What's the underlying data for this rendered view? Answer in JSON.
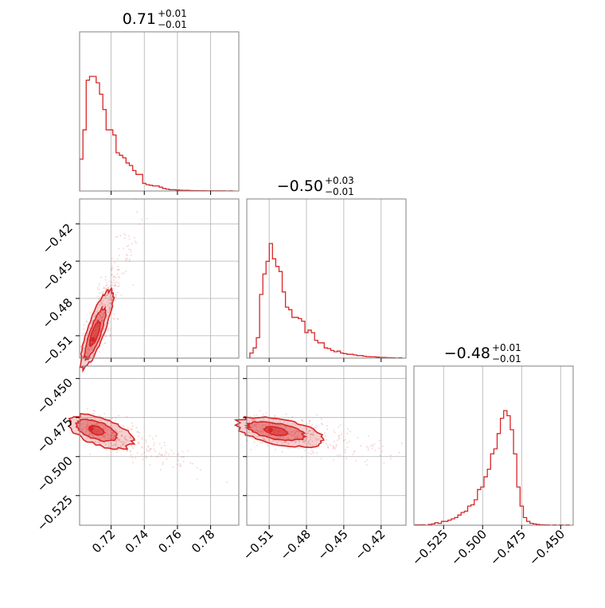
{
  "colors": {
    "accent": "#d62728",
    "fill": "#f4c6c7",
    "grid": "#b0b0b0",
    "frame": "#808080"
  },
  "chart_data": {
    "type": "corner",
    "titles": [
      {
        "center": "0.71",
        "plus": "+0.01",
        "minus": "−0.01"
      },
      {
        "center": "−0.50",
        "plus": "+0.03",
        "minus": "−0.01"
      },
      {
        "center": "−0.48",
        "plus": "+0.01",
        "minus": "−0.01"
      }
    ],
    "params": [
      {
        "range": [
          0.701,
          0.797
        ],
        "ticks": [
          0.72,
          0.74,
          0.76,
          0.78
        ],
        "tick_labels": [
          "0.72",
          "0.74",
          "0.76",
          "0.78"
        ]
      },
      {
        "range": [
          -0.528,
          -0.4
        ],
        "ticks": [
          -0.51,
          -0.48,
          -0.45,
          -0.42
        ],
        "tick_labels": [
          "−0.51",
          "−0.48",
          "−0.45",
          "−0.42"
        ]
      },
      {
        "range": [
          -0.544,
          -0.442
        ],
        "ticks": [
          -0.525,
          -0.5,
          -0.475,
          -0.45
        ],
        "tick_labels": [
          "−0.525",
          "−0.500",
          "−0.475",
          "−0.450"
        ]
      }
    ],
    "histograms": [
      {
        "bin_width": 0.002,
        "bins": [
          [
            0.701,
            0.25
          ],
          [
            0.703,
            0.48
          ],
          [
            0.705,
            0.87
          ],
          [
            0.707,
            0.9
          ],
          [
            0.709,
            0.9
          ],
          [
            0.711,
            0.85
          ],
          [
            0.713,
            0.76
          ],
          [
            0.715,
            0.64
          ],
          [
            0.717,
            0.48
          ],
          [
            0.719,
            0.48
          ],
          [
            0.721,
            0.44
          ],
          [
            0.723,
            0.3
          ],
          [
            0.725,
            0.28
          ],
          [
            0.727,
            0.26
          ],
          [
            0.729,
            0.22
          ],
          [
            0.731,
            0.2
          ],
          [
            0.733,
            0.16
          ],
          [
            0.735,
            0.13
          ],
          [
            0.737,
            0.13
          ],
          [
            0.739,
            0.06
          ],
          [
            0.741,
            0.05
          ],
          [
            0.743,
            0.045
          ],
          [
            0.745,
            0.04
          ],
          [
            0.747,
            0.04
          ],
          [
            0.749,
            0.03
          ],
          [
            0.751,
            0.02
          ],
          [
            0.753,
            0.015
          ],
          [
            0.755,
            0.01
          ],
          [
            0.757,
            0.01
          ],
          [
            0.759,
            0.008
          ],
          [
            0.761,
            0.006
          ],
          [
            0.763,
            0.005
          ],
          [
            0.765,
            0.005
          ],
          [
            0.767,
            0.004
          ],
          [
            0.769,
            0.003
          ],
          [
            0.771,
            0.003
          ],
          [
            0.773,
            0.002
          ],
          [
            0.775,
            0.002
          ],
          [
            0.777,
            0.001
          ],
          [
            0.779,
            0.001
          ],
          [
            0.781,
            0.001
          ],
          [
            0.783,
            0.001
          ],
          [
            0.785,
            0.001
          ],
          [
            0.787,
            0.001
          ],
          [
            0.789,
            0.0
          ],
          [
            0.791,
            0.001
          ],
          [
            0.793,
            0.0
          ]
        ]
      },
      {
        "bin_width": 0.0026,
        "bins": [
          [
            -0.5255,
            0.04
          ],
          [
            -0.5229,
            0.08
          ],
          [
            -0.5203,
            0.16
          ],
          [
            -0.5177,
            0.5
          ],
          [
            -0.5151,
            0.66
          ],
          [
            -0.5125,
            0.76
          ],
          [
            -0.5099,
            0.9
          ],
          [
            -0.5073,
            0.78
          ],
          [
            -0.5047,
            0.72
          ],
          [
            -0.5021,
            0.68
          ],
          [
            -0.4995,
            0.52
          ],
          [
            -0.4969,
            0.4
          ],
          [
            -0.4943,
            0.38
          ],
          [
            -0.4917,
            0.32
          ],
          [
            -0.4891,
            0.32
          ],
          [
            -0.4865,
            0.31
          ],
          [
            -0.4839,
            0.29
          ],
          [
            -0.4813,
            0.2
          ],
          [
            -0.4787,
            0.22
          ],
          [
            -0.4761,
            0.2
          ],
          [
            -0.4735,
            0.14
          ],
          [
            -0.4709,
            0.12
          ],
          [
            -0.4683,
            0.12
          ],
          [
            -0.4657,
            0.08
          ],
          [
            -0.4631,
            0.075
          ],
          [
            -0.4605,
            0.06
          ],
          [
            -0.4579,
            0.05
          ],
          [
            -0.4553,
            0.055
          ],
          [
            -0.4527,
            0.04
          ],
          [
            -0.4501,
            0.035
          ],
          [
            -0.4475,
            0.03
          ],
          [
            -0.4449,
            0.03
          ],
          [
            -0.4423,
            0.025
          ],
          [
            -0.4397,
            0.02
          ],
          [
            -0.4371,
            0.02
          ],
          [
            -0.4345,
            0.015
          ],
          [
            -0.4319,
            0.012
          ],
          [
            -0.4293,
            0.01
          ],
          [
            -0.4267,
            0.01
          ],
          [
            -0.4241,
            0.008
          ],
          [
            -0.4215,
            0.005
          ],
          [
            -0.4189,
            0.005
          ],
          [
            -0.4163,
            0.004
          ],
          [
            -0.4137,
            0.003
          ],
          [
            -0.4111,
            0.002
          ],
          [
            -0.4085,
            0.0
          ],
          [
            -0.4059,
            0.002
          ]
        ]
      },
      {
        "bin_width": 0.0021,
        "bins": [
          [
            -0.5432,
            0.003
          ],
          [
            -0.5411,
            0.003
          ],
          [
            -0.539,
            0.004
          ],
          [
            -0.5369,
            0.0
          ],
          [
            -0.5348,
            0.006
          ],
          [
            -0.5327,
            0.01
          ],
          [
            -0.5306,
            0.02
          ],
          [
            -0.5285,
            0.015
          ],
          [
            -0.5264,
            0.03
          ],
          [
            -0.5243,
            0.03
          ],
          [
            -0.5222,
            0.04
          ],
          [
            -0.5201,
            0.05
          ],
          [
            -0.518,
            0.06
          ],
          [
            -0.5159,
            0.08
          ],
          [
            -0.5138,
            0.1
          ],
          [
            -0.5117,
            0.11
          ],
          [
            -0.5096,
            0.15
          ],
          [
            -0.5075,
            0.16
          ],
          [
            -0.5054,
            0.2
          ],
          [
            -0.5033,
            0.28
          ],
          [
            -0.5012,
            0.3
          ],
          [
            -0.4991,
            0.38
          ],
          [
            -0.497,
            0.44
          ],
          [
            -0.4949,
            0.56
          ],
          [
            -0.4928,
            0.6
          ],
          [
            -0.4907,
            0.72
          ],
          [
            -0.4886,
            0.84
          ],
          [
            -0.4865,
            0.9
          ],
          [
            -0.4844,
            0.86
          ],
          [
            -0.4823,
            0.75
          ],
          [
            -0.4802,
            0.56
          ],
          [
            -0.4781,
            0.3
          ],
          [
            -0.476,
            0.15
          ],
          [
            -0.4739,
            0.06
          ],
          [
            -0.4718,
            0.03
          ],
          [
            -0.4697,
            0.015
          ],
          [
            -0.4676,
            0.01
          ],
          [
            -0.4655,
            0.006
          ],
          [
            -0.4634,
            0.004
          ],
          [
            -0.4613,
            0.003
          ],
          [
            -0.4592,
            0.002
          ],
          [
            -0.4571,
            0.0
          ],
          [
            -0.455,
            0.002
          ],
          [
            -0.4529,
            0.0
          ],
          [
            -0.4508,
            0.002
          ],
          [
            -0.4487,
            0.0
          ],
          [
            -0.4466,
            0.002
          ]
        ]
      }
    ],
    "pairs": [
      {
        "row": 1,
        "col": 0,
        "mean": [
          0.709,
          -0.513
        ],
        "slope": 3.7,
        "sd_major": 0.0085,
        "sd_minor": 0.0017
      },
      {
        "row": 2,
        "col": 0,
        "mean": [
          0.708,
          -0.482
        ],
        "slope": -0.38,
        "sd_major": 0.0095,
        "sd_minor": 0.0035
      },
      {
        "row": 2,
        "col": 1,
        "mean": [
          -0.509,
          -0.483
        ],
        "slope": -0.15,
        "sd_major": 0.016,
        "sd_minor": 0.0045
      }
    ]
  }
}
